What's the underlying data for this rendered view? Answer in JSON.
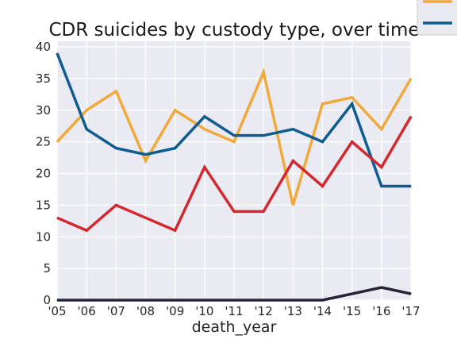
{
  "chart_data": {
    "type": "line",
    "title": "CDR suicides by custody type, over time",
    "xlabel": "death_year",
    "ylabel": "",
    "categories": [
      "'05",
      "'06",
      "'07",
      "'08",
      "'09",
      "'10",
      "'11",
      "'12",
      "'13",
      "'14",
      "'15",
      "'16",
      "'17"
    ],
    "ylim": [
      0,
      40
    ],
    "yticks": [
      0,
      5,
      10,
      15,
      20,
      25,
      30,
      35,
      40
    ],
    "grid": true,
    "legend": "top-right",
    "series": [
      {
        "color": "#f2a93b",
        "values": [
          25,
          30,
          33,
          22,
          30,
          27,
          25,
          36,
          15,
          31,
          32,
          27,
          35
        ]
      },
      {
        "color": "#0f5c91",
        "values": [
          39,
          27,
          24,
          23,
          24,
          29,
          26,
          26,
          27,
          25,
          31,
          18,
          18
        ]
      },
      {
        "color": "#d1292e",
        "values": [
          13,
          11,
          15,
          13,
          11,
          21,
          14,
          14,
          22,
          18,
          25,
          21,
          29
        ]
      },
      {
        "color": "#232339",
        "values": [
          0,
          0,
          0,
          0,
          0,
          0,
          0,
          0,
          0,
          0,
          1,
          2,
          1
        ]
      }
    ]
  }
}
